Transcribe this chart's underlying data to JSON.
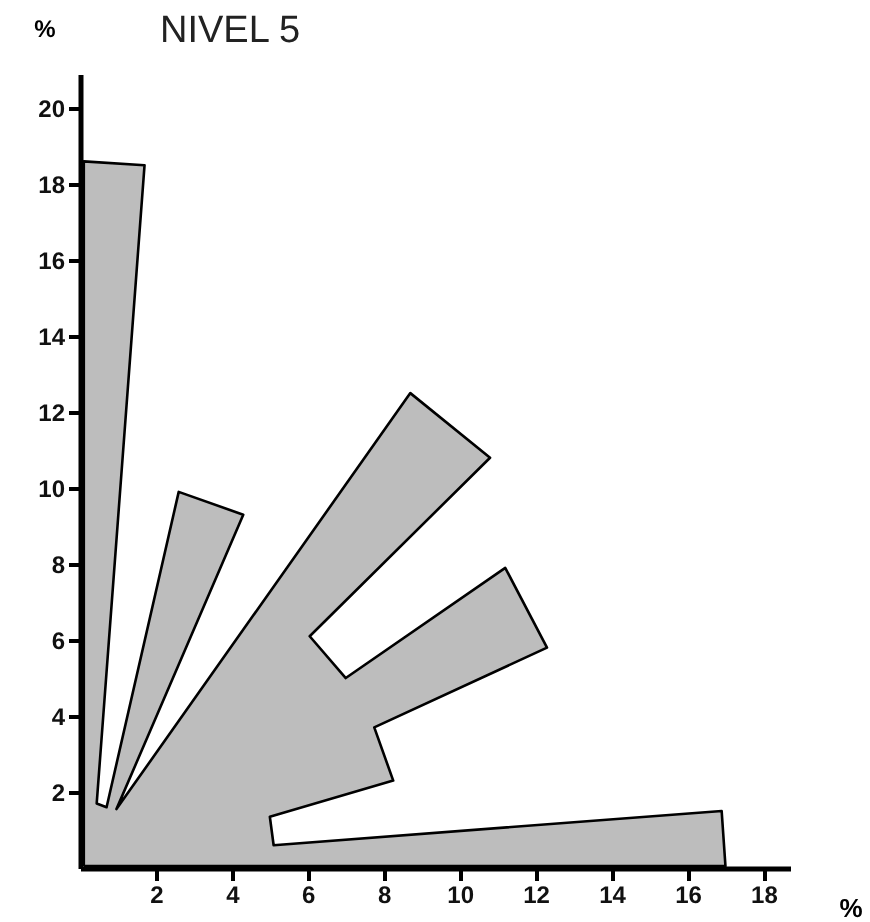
{
  "chart_data": {
    "type": "area",
    "title": "NIVEL 5",
    "xlabel": "%",
    "ylabel": "%",
    "xlim": [
      0,
      18.7
    ],
    "ylim": [
      0,
      20.9
    ],
    "xticks": [
      2,
      4,
      6,
      8,
      10,
      12,
      14,
      16,
      18
    ],
    "yticks": [
      2,
      4,
      6,
      8,
      10,
      12,
      14,
      16,
      18,
      20
    ],
    "grid": false,
    "series": [
      {
        "color": "#bdbdbd",
        "x": [
          0.1,
          0.1,
          1.7,
          0.44,
          0.7,
          2.6,
          4.3,
          0.96,
          8.7,
          10.8,
          6.05,
          7.0,
          11.2,
          12.3,
          7.75,
          8.25,
          5.0,
          5.1,
          16.9,
          17.0,
          0.1
        ],
        "values": [
          0.05,
          18.6,
          18.5,
          1.7,
          1.6,
          9.9,
          9.3,
          1.55,
          12.5,
          10.8,
          6.1,
          5.0,
          7.9,
          5.8,
          3.7,
          2.3,
          1.35,
          0.6,
          1.5,
          0.05,
          0.05
        ]
      }
    ]
  }
}
